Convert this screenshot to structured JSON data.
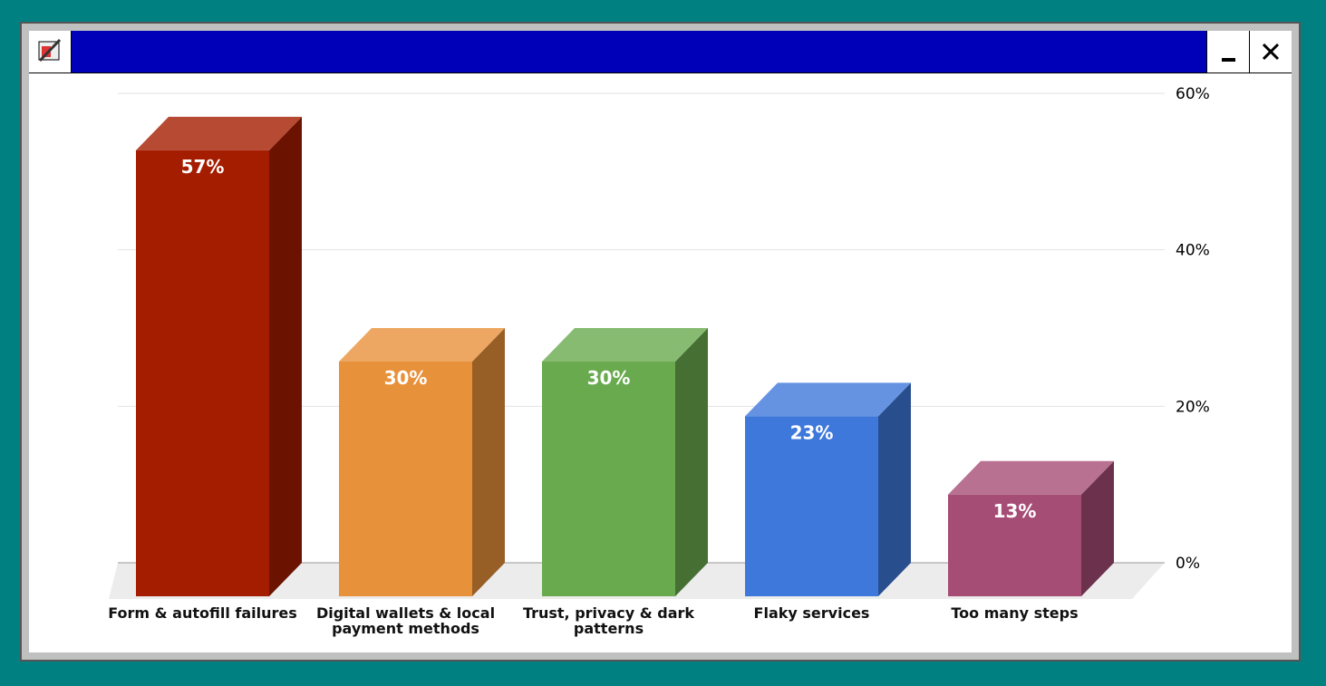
{
  "chart_data": {
    "type": "bar3d",
    "categories": [
      "Form & autofill failures",
      "Digital wallets & local payment methods",
      "Trust, privacy & dark patterns",
      "Flaky services",
      "Too many steps"
    ],
    "values": [
      57,
      30,
      30,
      23,
      13
    ],
    "value_labels": [
      "57%",
      "30%",
      "30%",
      "23%",
      "13%"
    ],
    "colors": [
      "#a51d00",
      "#e8913b",
      "#6aaa4f",
      "#3f78db",
      "#a64d76"
    ],
    "ylim": [
      0,
      60
    ],
    "yticks": [
      {
        "value": 0,
        "label": "0%"
      },
      {
        "value": 20,
        "label": "20%"
      },
      {
        "value": 40,
        "label": "40%"
      },
      {
        "value": 60,
        "label": "60%"
      }
    ],
    "grid": true
  }
}
